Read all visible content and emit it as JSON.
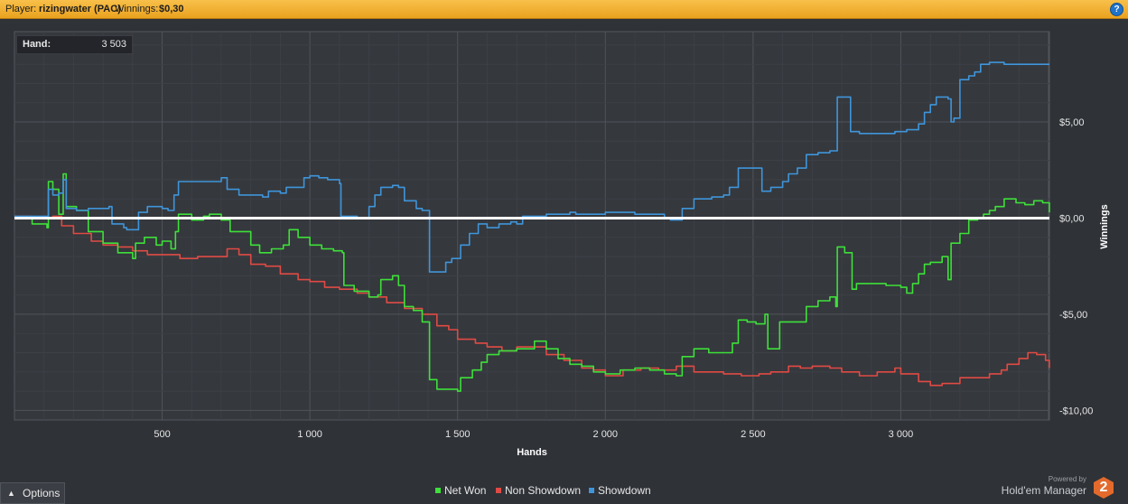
{
  "header": {
    "player_label": "Player:",
    "player_name": "rizingwater (PAC)",
    "winnings_label": "Winnings:",
    "winnings_value": "$0,30",
    "help_icon": "?"
  },
  "hand_readout": {
    "label": "Hand:",
    "value": "3 503"
  },
  "footer": {
    "options_label": "Options",
    "powered_by": "Powered by",
    "brand_name": "Hold'em Manager",
    "brand_logo": "2"
  },
  "colors": {
    "net_won": "#3ee03a",
    "non_showdown": "#e14a44",
    "showdown": "#3f95da",
    "zero_line": "#ffffff",
    "title_bar": "#f0ac2c"
  },
  "chart_data": {
    "type": "line",
    "xlabel": "Hands",
    "ylabel": "Winnings",
    "xlim": [
      0,
      3503
    ],
    "ylim": [
      -10.5,
      9.7
    ],
    "x_ticks": [
      500,
      1000,
      1500,
      2000,
      2500,
      3000
    ],
    "x_tick_labels": [
      "500",
      "1 000",
      "1 500",
      "2 000",
      "2 500",
      "3 000"
    ],
    "y_ticks": [
      5,
      0,
      -5,
      -10
    ],
    "y_tick_labels": [
      "$5,00",
      "$0,00",
      "-$5,00",
      "-$10,00"
    ],
    "grid": true,
    "legend_position": "bottom",
    "series": [
      {
        "name": "Net Won",
        "color": "#3ee03a",
        "points": [
          [
            0,
            0
          ],
          [
            60,
            -0.3
          ],
          [
            110,
            -0.5
          ],
          [
            115,
            1.9
          ],
          [
            130,
            1.5
          ],
          [
            150,
            0.2
          ],
          [
            165,
            2.3
          ],
          [
            175,
            0.6
          ],
          [
            210,
            0.4
          ],
          [
            250,
            -0.7
          ],
          [
            300,
            -1.3
          ],
          [
            350,
            -1.8
          ],
          [
            400,
            -2.1
          ],
          [
            410,
            -1.3
          ],
          [
            440,
            -1.0
          ],
          [
            480,
            -1.4
          ],
          [
            500,
            -1.2
          ],
          [
            530,
            -1.6
          ],
          [
            545,
            -0.7
          ],
          [
            555,
            0.2
          ],
          [
            600,
            -0.1
          ],
          [
            640,
            0.1
          ],
          [
            660,
            0.2
          ],
          [
            700,
            -0.1
          ],
          [
            730,
            -0.7
          ],
          [
            760,
            -0.7
          ],
          [
            800,
            -1.4
          ],
          [
            830,
            -1.8
          ],
          [
            870,
            -1.6
          ],
          [
            910,
            -1.4
          ],
          [
            930,
            -0.6
          ],
          [
            960,
            -1.0
          ],
          [
            1000,
            -1.4
          ],
          [
            1040,
            -1.6
          ],
          [
            1080,
            -1.7
          ],
          [
            1110,
            -1.8
          ],
          [
            1115,
            -3.5
          ],
          [
            1150,
            -3.8
          ],
          [
            1200,
            -4.1
          ],
          [
            1230,
            -4.0
          ],
          [
            1240,
            -3.2
          ],
          [
            1280,
            -3.0
          ],
          [
            1300,
            -3.5
          ],
          [
            1320,
            -4.6
          ],
          [
            1350,
            -4.8
          ],
          [
            1380,
            -5.4
          ],
          [
            1400,
            -5.4
          ],
          [
            1405,
            -8.4
          ],
          [
            1430,
            -8.9
          ],
          [
            1470,
            -8.9
          ],
          [
            1500,
            -9.0
          ],
          [
            1510,
            -8.3
          ],
          [
            1550,
            -7.9
          ],
          [
            1580,
            -7.5
          ],
          [
            1600,
            -7.1
          ],
          [
            1640,
            -6.9
          ],
          [
            1700,
            -6.8
          ],
          [
            1760,
            -6.4
          ],
          [
            1800,
            -6.8
          ],
          [
            1840,
            -7.3
          ],
          [
            1880,
            -7.6
          ],
          [
            1920,
            -7.7
          ],
          [
            1960,
            -8.0
          ],
          [
            2000,
            -8.1
          ],
          [
            2050,
            -7.9
          ],
          [
            2100,
            -7.8
          ],
          [
            2150,
            -7.9
          ],
          [
            2200,
            -8.1
          ],
          [
            2240,
            -8.2
          ],
          [
            2260,
            -7.2
          ],
          [
            2300,
            -6.8
          ],
          [
            2350,
            -7.0
          ],
          [
            2400,
            -7.0
          ],
          [
            2430,
            -6.5
          ],
          [
            2450,
            -5.3
          ],
          [
            2480,
            -5.4
          ],
          [
            2510,
            -5.5
          ],
          [
            2540,
            -5.0
          ],
          [
            2550,
            -6.8
          ],
          [
            2580,
            -6.8
          ],
          [
            2590,
            -5.4
          ],
          [
            2640,
            -5.4
          ],
          [
            2660,
            -5.4
          ],
          [
            2680,
            -4.6
          ],
          [
            2720,
            -4.3
          ],
          [
            2760,
            -4.1
          ],
          [
            2780,
            -4.6
          ],
          [
            2785,
            -1.5
          ],
          [
            2810,
            -1.8
          ],
          [
            2830,
            -1.8
          ],
          [
            2835,
            -3.7
          ],
          [
            2850,
            -3.4
          ],
          [
            2900,
            -3.4
          ],
          [
            2950,
            -3.5
          ],
          [
            3000,
            -3.6
          ],
          [
            3020,
            -3.9
          ],
          [
            3040,
            -3.4
          ],
          [
            3060,
            -2.9
          ],
          [
            3080,
            -2.4
          ],
          [
            3100,
            -2.3
          ],
          [
            3140,
            -2.0
          ],
          [
            3160,
            -3.2
          ],
          [
            3170,
            -1.3
          ],
          [
            3200,
            -0.8
          ],
          [
            3230,
            -0.1
          ],
          [
            3260,
            0.0
          ],
          [
            3280,
            0.2
          ],
          [
            3300,
            0.4
          ],
          [
            3320,
            0.6
          ],
          [
            3350,
            1.0
          ],
          [
            3390,
            0.8
          ],
          [
            3420,
            0.7
          ],
          [
            3450,
            0.9
          ],
          [
            3480,
            0.8
          ],
          [
            3503,
            0.3
          ]
        ]
      },
      {
        "name": "Non Showdown",
        "color": "#e14a44",
        "points": [
          [
            0,
            0.1
          ],
          [
            60,
            0
          ],
          [
            100,
            0
          ],
          [
            130,
            0.1
          ],
          [
            160,
            -0.4
          ],
          [
            200,
            -0.8
          ],
          [
            260,
            -1.2
          ],
          [
            300,
            -1.4
          ],
          [
            350,
            -1.5
          ],
          [
            400,
            -1.7
          ],
          [
            450,
            -1.9
          ],
          [
            500,
            -1.9
          ],
          [
            560,
            -2.1
          ],
          [
            620,
            -2.0
          ],
          [
            680,
            -2.0
          ],
          [
            720,
            -1.6
          ],
          [
            760,
            -1.9
          ],
          [
            800,
            -2.4
          ],
          [
            850,
            -2.5
          ],
          [
            900,
            -2.9
          ],
          [
            960,
            -3.2
          ],
          [
            1000,
            -3.3
          ],
          [
            1050,
            -3.6
          ],
          [
            1100,
            -3.7
          ],
          [
            1160,
            -3.9
          ],
          [
            1200,
            -4.1
          ],
          [
            1260,
            -4.4
          ],
          [
            1320,
            -4.7
          ],
          [
            1380,
            -5.0
          ],
          [
            1430,
            -5.6
          ],
          [
            1470,
            -5.8
          ],
          [
            1500,
            -6.3
          ],
          [
            1560,
            -6.5
          ],
          [
            1600,
            -6.7
          ],
          [
            1650,
            -6.9
          ],
          [
            1700,
            -6.7
          ],
          [
            1760,
            -6.7
          ],
          [
            1800,
            -7.1
          ],
          [
            1860,
            -7.4
          ],
          [
            1920,
            -7.8
          ],
          [
            1960,
            -7.9
          ],
          [
            2000,
            -8.2
          ],
          [
            2060,
            -7.9
          ],
          [
            2120,
            -7.8
          ],
          [
            2180,
            -7.9
          ],
          [
            2240,
            -7.7
          ],
          [
            2300,
            -8.0
          ],
          [
            2360,
            -8.0
          ],
          [
            2400,
            -8.1
          ],
          [
            2460,
            -8.2
          ],
          [
            2520,
            -8.1
          ],
          [
            2560,
            -8.0
          ],
          [
            2620,
            -7.7
          ],
          [
            2660,
            -7.8
          ],
          [
            2700,
            -7.7
          ],
          [
            2760,
            -7.8
          ],
          [
            2800,
            -8.0
          ],
          [
            2860,
            -8.2
          ],
          [
            2920,
            -8.0
          ],
          [
            2980,
            -7.8
          ],
          [
            3000,
            -8.1
          ],
          [
            3060,
            -8.5
          ],
          [
            3100,
            -8.7
          ],
          [
            3140,
            -8.6
          ],
          [
            3200,
            -8.3
          ],
          [
            3260,
            -8.3
          ],
          [
            3300,
            -8.1
          ],
          [
            3340,
            -7.9
          ],
          [
            3360,
            -7.6
          ],
          [
            3400,
            -7.3
          ],
          [
            3430,
            -7.0
          ],
          [
            3460,
            -7.1
          ],
          [
            3490,
            -7.4
          ],
          [
            3503,
            -7.8
          ]
        ]
      },
      {
        "name": "Showdown",
        "color": "#3f95da",
        "points": [
          [
            0,
            0.1
          ],
          [
            60,
            0.1
          ],
          [
            110,
            0.1
          ],
          [
            115,
            1.5
          ],
          [
            130,
            1.2
          ],
          [
            150,
            1.3
          ],
          [
            165,
            2.0
          ],
          [
            175,
            0.5
          ],
          [
            210,
            0.4
          ],
          [
            250,
            0.5
          ],
          [
            320,
            0.6
          ],
          [
            330,
            -0.3
          ],
          [
            370,
            -0.5
          ],
          [
            380,
            -0.6
          ],
          [
            420,
            0.3
          ],
          [
            450,
            0.6
          ],
          [
            500,
            0.5
          ],
          [
            520,
            0.4
          ],
          [
            540,
            1.2
          ],
          [
            555,
            1.9
          ],
          [
            600,
            1.9
          ],
          [
            640,
            1.9
          ],
          [
            700,
            2.1
          ],
          [
            720,
            1.5
          ],
          [
            760,
            1.2
          ],
          [
            800,
            1.2
          ],
          [
            840,
            1.1
          ],
          [
            860,
            1.4
          ],
          [
            900,
            1.3
          ],
          [
            920,
            1.6
          ],
          [
            940,
            1.6
          ],
          [
            980,
            2.1
          ],
          [
            1000,
            2.2
          ],
          [
            1030,
            2.1
          ],
          [
            1060,
            2.0
          ],
          [
            1100,
            1.8
          ],
          [
            1105,
            0.1
          ],
          [
            1150,
            0.1
          ],
          [
            1160,
            0.0
          ],
          [
            1200,
            0.6
          ],
          [
            1220,
            1.2
          ],
          [
            1240,
            1.6
          ],
          [
            1280,
            1.7
          ],
          [
            1300,
            1.6
          ],
          [
            1320,
            0.9
          ],
          [
            1360,
            0.5
          ],
          [
            1380,
            0.4
          ],
          [
            1400,
            0.4
          ],
          [
            1405,
            -2.8
          ],
          [
            1440,
            -2.8
          ],
          [
            1460,
            -2.3
          ],
          [
            1480,
            -2.1
          ],
          [
            1510,
            -1.4
          ],
          [
            1540,
            -0.8
          ],
          [
            1570,
            -0.3
          ],
          [
            1600,
            -0.5
          ],
          [
            1640,
            -0.3
          ],
          [
            1680,
            -0.2
          ],
          [
            1700,
            -0.3
          ],
          [
            1720,
            0.1
          ],
          [
            1800,
            0.2
          ],
          [
            1860,
            0.2
          ],
          [
            1880,
            0.3
          ],
          [
            1900,
            0.2
          ],
          [
            1960,
            0.2
          ],
          [
            2000,
            0.3
          ],
          [
            2100,
            0.2
          ],
          [
            2160,
            0.2
          ],
          [
            2200,
            0.0
          ],
          [
            2220,
            -0.1
          ],
          [
            2240,
            -0.1
          ],
          [
            2260,
            0.5
          ],
          [
            2300,
            1.0
          ],
          [
            2360,
            1.1
          ],
          [
            2400,
            1.2
          ],
          [
            2420,
            1.6
          ],
          [
            2450,
            2.6
          ],
          [
            2500,
            2.6
          ],
          [
            2530,
            1.4
          ],
          [
            2560,
            1.6
          ],
          [
            2600,
            1.9
          ],
          [
            2620,
            2.3
          ],
          [
            2650,
            2.6
          ],
          [
            2680,
            3.3
          ],
          [
            2720,
            3.4
          ],
          [
            2760,
            3.5
          ],
          [
            2780,
            3.5
          ],
          [
            2785,
            6.3
          ],
          [
            2820,
            6.3
          ],
          [
            2830,
            4.5
          ],
          [
            2860,
            4.4
          ],
          [
            2900,
            4.4
          ],
          [
            2940,
            4.4
          ],
          [
            2980,
            4.5
          ],
          [
            3000,
            4.5
          ],
          [
            3020,
            4.6
          ],
          [
            3060,
            4.9
          ],
          [
            3080,
            5.5
          ],
          [
            3100,
            5.9
          ],
          [
            3120,
            6.3
          ],
          [
            3160,
            6.2
          ],
          [
            3170,
            5.0
          ],
          [
            3180,
            5.2
          ],
          [
            3200,
            7.2
          ],
          [
            3230,
            7.4
          ],
          [
            3250,
            7.6
          ],
          [
            3270,
            8.0
          ],
          [
            3300,
            8.1
          ],
          [
            3350,
            8.0
          ],
          [
            3400,
            8.0
          ],
          [
            3503,
            8.0
          ]
        ]
      }
    ]
  }
}
